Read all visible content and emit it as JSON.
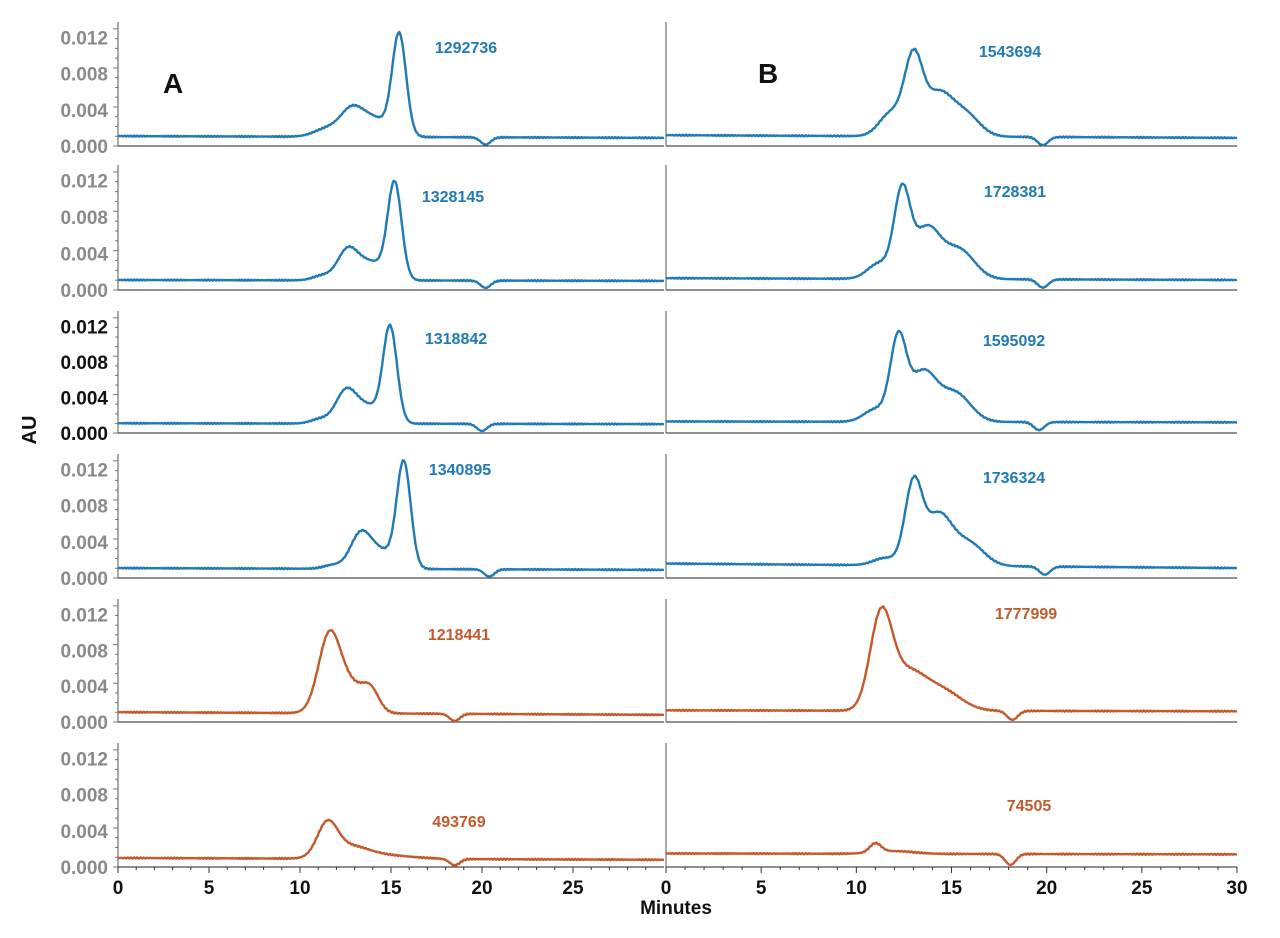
{
  "chart_data": {
    "type": "line",
    "ylabel": "AU",
    "xlabel": "Minutes",
    "panel_labels": [
      "A",
      "B"
    ],
    "x_ticks": [
      "0",
      "5",
      "10",
      "15",
      "20",
      "25",
      "30"
    ],
    "y_ticks": [
      "0.000",
      "0.004",
      "0.008",
      "0.012"
    ],
    "ylim": [
      0,
      0.0135
    ],
    "xlim": [
      0,
      30
    ],
    "colors": {
      "blue": "#1f7ab5",
      "orange": "#c45a2a",
      "tick_grey": "#8a8a8a",
      "tick_dark": "#111111"
    },
    "panels": [
      {
        "column": "A",
        "row": 0,
        "label": "1292736",
        "color": "blue",
        "baseline": 0.0011,
        "end": 0.0009,
        "dip": [
          20.2,
          -0.0008
        ],
        "peaks": [
          [
            11.5,
            0.0009,
            0.7
          ],
          [
            12.8,
            0.0024,
            0.6
          ],
          [
            14.0,
            0.0021,
            0.9
          ],
          [
            15.45,
            0.011,
            0.38
          ]
        ]
      },
      {
        "column": "A",
        "row": 1,
        "label": "1328145",
        "color": "blue",
        "baseline": 0.0011,
        "end": 0.001,
        "dip": [
          20.2,
          -0.0008
        ],
        "peaks": [
          [
            11.2,
            0.0005,
            0.5
          ],
          [
            12.6,
            0.0031,
            0.55
          ],
          [
            13.9,
            0.002,
            0.8
          ],
          [
            15.2,
            0.0104,
            0.38
          ]
        ]
      },
      {
        "column": "A",
        "row": 2,
        "label": "1318842",
        "color": "blue",
        "baseline": 0.0011,
        "end": 0.001,
        "dip": [
          20.0,
          -0.0008
        ],
        "peaks": [
          [
            11.1,
            0.0005,
            0.5
          ],
          [
            12.5,
            0.0033,
            0.55
          ],
          [
            13.7,
            0.002,
            0.8
          ],
          [
            14.95,
            0.0105,
            0.38
          ]
        ]
      },
      {
        "column": "A",
        "row": 3,
        "label": "1340895",
        "color": "blue",
        "baseline": 0.0011,
        "end": 0.0009,
        "dip": [
          20.4,
          -0.0008
        ],
        "peaks": [
          [
            11.8,
            0.0004,
            0.5
          ],
          [
            13.3,
            0.0034,
            0.55
          ],
          [
            14.4,
            0.002,
            0.8
          ],
          [
            15.7,
            0.0115,
            0.38
          ]
        ]
      },
      {
        "column": "A",
        "row": 4,
        "label": "1218441",
        "color": "orange",
        "baseline": 0.0011,
        "end": 0.0008,
        "dip": [
          18.5,
          -0.0008
        ],
        "peaks": [
          [
            11.6,
            0.0082,
            0.6
          ],
          [
            12.8,
            0.003,
            0.8
          ],
          [
            13.9,
            0.002,
            0.45
          ]
        ]
      },
      {
        "column": "A",
        "row": 5,
        "label": "493769",
        "color": "orange",
        "baseline": 0.001,
        "end": 0.0008,
        "dip": [
          18.5,
          -0.0007
        ],
        "peaks": [
          [
            11.5,
            0.0036,
            0.55
          ],
          [
            12.7,
            0.0012,
            1.0
          ],
          [
            14.5,
            0.0004,
            1.6
          ]
        ]
      },
      {
        "column": "B",
        "row": 0,
        "label": "1543694",
        "color": "blue",
        "baseline": 0.0012,
        "end": 0.0009,
        "dip": [
          19.8,
          -0.0009
        ],
        "peaks": [
          [
            11.8,
            0.0025,
            0.6
          ],
          [
            13.0,
            0.0085,
            0.48
          ],
          [
            14.3,
            0.0045,
            0.7
          ],
          [
            15.7,
            0.0025,
            0.75
          ]
        ]
      },
      {
        "column": "B",
        "row": 1,
        "label": "1728381",
        "color": "blue",
        "baseline": 0.0013,
        "end": 0.0011,
        "dip": [
          19.8,
          -0.0009
        ],
        "peaks": [
          [
            11.2,
            0.0017,
            0.6
          ],
          [
            12.4,
            0.0092,
            0.42
          ],
          [
            13.7,
            0.0055,
            0.7
          ],
          [
            15.4,
            0.0032,
            0.8
          ]
        ]
      },
      {
        "column": "B",
        "row": 2,
        "label": "1595092",
        "color": "blue",
        "baseline": 0.0013,
        "end": 0.0012,
        "dip": [
          19.6,
          -0.0009
        ],
        "peaks": [
          [
            11.0,
            0.0014,
            0.6
          ],
          [
            12.2,
            0.009,
            0.42
          ],
          [
            13.5,
            0.0055,
            0.7
          ],
          [
            15.2,
            0.0032,
            0.8
          ]
        ]
      },
      {
        "column": "B",
        "row": 3,
        "label": "1736324",
        "color": "blue",
        "baseline": 0.0016,
        "end": 0.0011,
        "dip": [
          19.9,
          -0.0009
        ],
        "peaks": [
          [
            11.5,
            0.0008,
            0.6
          ],
          [
            13.0,
            0.0088,
            0.45
          ],
          [
            14.3,
            0.0055,
            0.7
          ],
          [
            15.9,
            0.0025,
            0.8
          ]
        ]
      },
      {
        "column": "B",
        "row": 4,
        "label": "1777999",
        "color": "orange",
        "baseline": 0.0013,
        "end": 0.0012,
        "dip": [
          18.2,
          -0.001
        ],
        "peaks": [
          [
            11.3,
            0.0103,
            0.58
          ],
          [
            12.7,
            0.004,
            0.9
          ],
          [
            14.5,
            0.0022,
            1.0
          ]
        ]
      },
      {
        "column": "B",
        "row": 5,
        "label": "74505",
        "color": "orange",
        "baseline": 0.0015,
        "end": 0.0014,
        "dip": [
          18.1,
          -0.0012
        ],
        "peaks": [
          [
            11.0,
            0.001,
            0.3
          ],
          [
            12.0,
            0.0003,
            1.0
          ]
        ]
      }
    ]
  }
}
